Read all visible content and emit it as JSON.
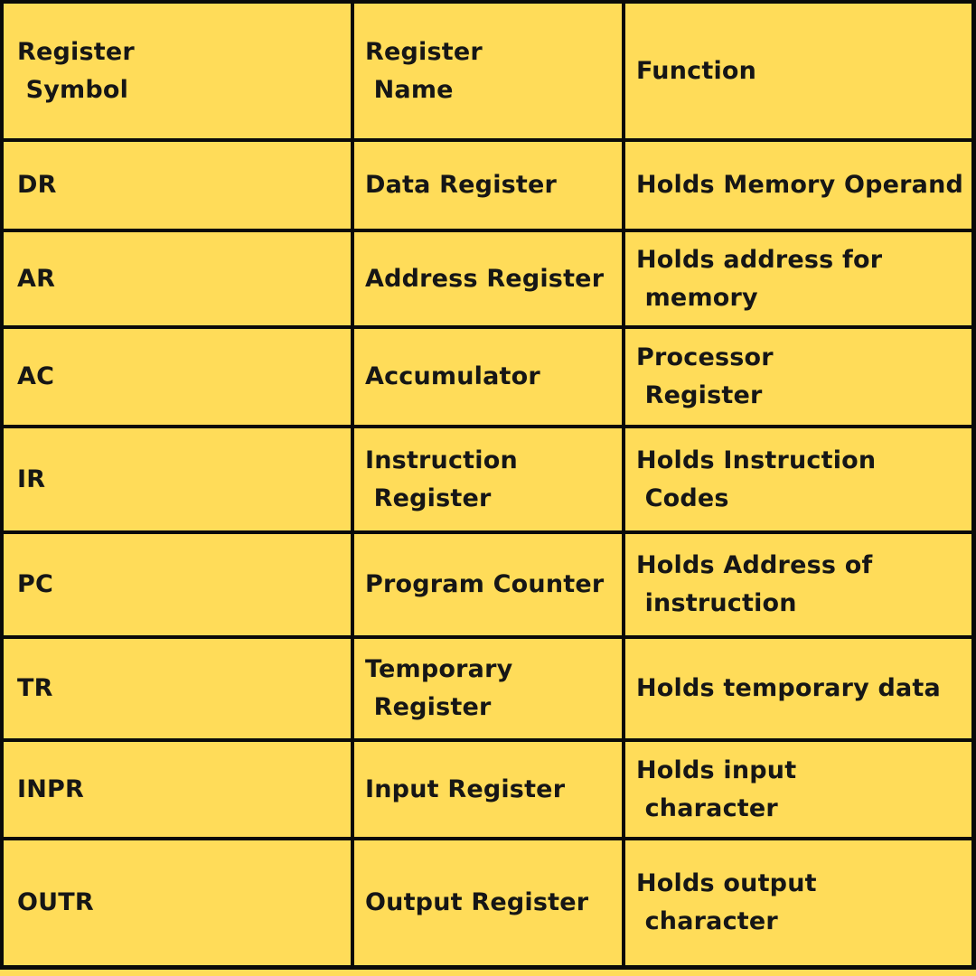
{
  "page": {
    "background_color": "#FFDC59",
    "grid_color": "#0a0a0a",
    "text_color": "#161616"
  },
  "table": {
    "headers": {
      "symbol": "Register\n Symbol",
      "name": "Register\n Name",
      "function": "Function"
    },
    "rows": [
      {
        "symbol": "DR",
        "name": "Data Register",
        "function": "Holds Memory Operand"
      },
      {
        "symbol": "AR",
        "name": "Address Register",
        "function": "Holds address for\n memory"
      },
      {
        "symbol": "AC",
        "name": "Accumulator",
        "function": "Processor\n Register"
      },
      {
        "symbol": "IR",
        "name": "Instruction\n Register",
        "function": "Holds Instruction\n Codes"
      },
      {
        "symbol": "PC",
        "name": "Program Counter",
        "function": "Holds Address of\n instruction"
      },
      {
        "symbol": "TR",
        "name": "Temporary\n Register",
        "function": "Holds temporary data"
      },
      {
        "symbol": "INPR",
        "name": "Input Register",
        "function": "Holds input\n character"
      },
      {
        "symbol": "OUTR",
        "name": "Output Register",
        "function": "Holds output\n character"
      }
    ]
  }
}
